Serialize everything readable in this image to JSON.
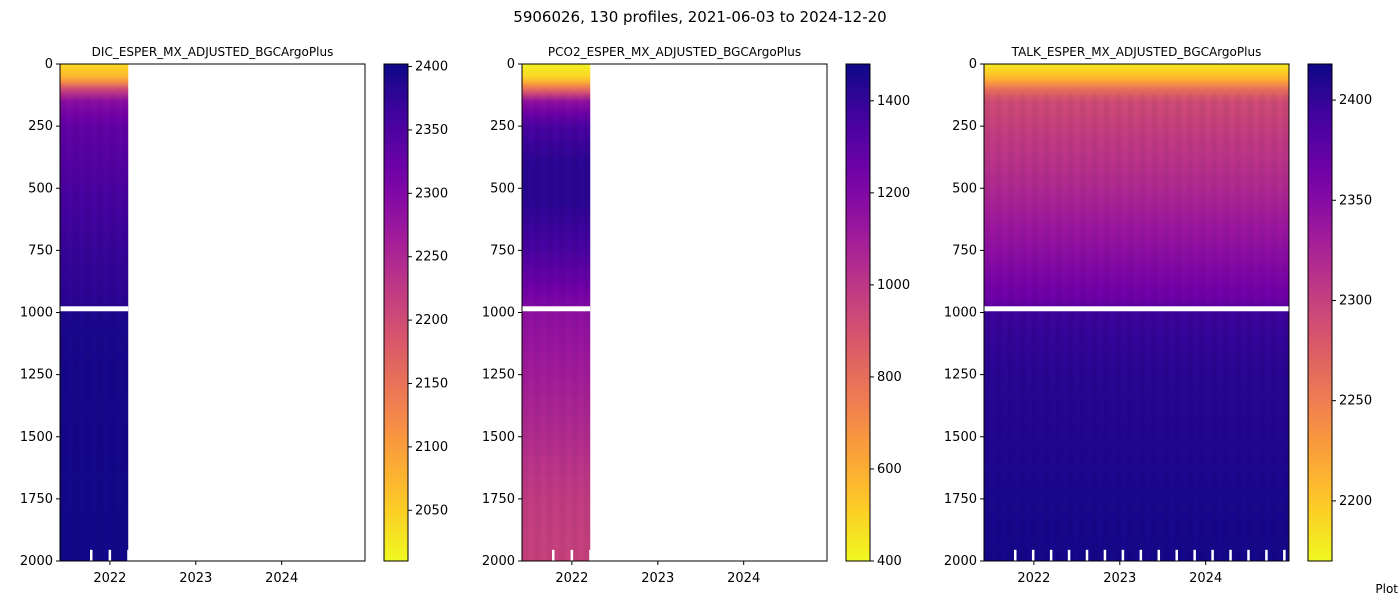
{
  "figure": {
    "title": "5906026, 130 profiles, 2021-06-03 to 2024-12-20",
    "corner_note": "Plot"
  },
  "chart_data": [
    {
      "type": "heatmap",
      "title": "DIC_ESPER_MX_ADJUSTED_BGCArgoPlus",
      "xlabel": "",
      "ylabel": "",
      "x_range": [
        "2021-06-03",
        "2024-12-20"
      ],
      "x_ticks": [
        "2022",
        "2023",
        "2024"
      ],
      "y_range": [
        2000,
        0
      ],
      "y_ticks": [
        0,
        250,
        500,
        750,
        1000,
        1250,
        1500,
        1750,
        2000
      ],
      "data_extent": [
        "2021-06-03",
        "2022-03-20"
      ],
      "missing_depth_band": [
        975,
        995
      ],
      "colormap": "plasma_r",
      "colorbar": {
        "min": 2010,
        "max": 2402,
        "ticks": [
          2050,
          2100,
          2150,
          2200,
          2250,
          2300,
          2350,
          2400
        ]
      },
      "depth_profile": [
        [
          0,
          2040
        ],
        [
          60,
          2080
        ],
        [
          100,
          2200
        ],
        [
          150,
          2290
        ],
        [
          250,
          2330
        ],
        [
          500,
          2355
        ],
        [
          750,
          2370
        ],
        [
          970,
          2380
        ],
        [
          1000,
          2390
        ],
        [
          1250,
          2395
        ],
        [
          2000,
          2400
        ]
      ]
    },
    {
      "type": "heatmap",
      "title": "PCO2_ESPER_MX_ADJUSTED_BGCArgoPlus",
      "xlabel": "",
      "ylabel": "",
      "x_range": [
        "2021-06-03",
        "2024-12-20"
      ],
      "x_ticks": [
        "2022",
        "2023",
        "2024"
      ],
      "y_range": [
        2000,
        0
      ],
      "y_ticks": [
        0,
        250,
        500,
        750,
        1000,
        1250,
        1500,
        1750,
        2000
      ],
      "data_extent": [
        "2021-06-03",
        "2022-03-20"
      ],
      "missing_depth_band": [
        975,
        995
      ],
      "colormap": "plasma_r",
      "colorbar": {
        "min": 400,
        "max": 1480,
        "ticks": [
          400,
          600,
          800,
          1000,
          1200,
          1400
        ]
      },
      "depth_profile": [
        [
          0,
          420
        ],
        [
          60,
          500
        ],
        [
          100,
          800
        ],
        [
          150,
          1150
        ],
        [
          250,
          1350
        ],
        [
          400,
          1420
        ],
        [
          550,
          1420
        ],
        [
          750,
          1350
        ],
        [
          970,
          1200
        ],
        [
          1000,
          1160
        ],
        [
          1250,
          1100
        ],
        [
          1500,
          1040
        ],
        [
          1750,
          980
        ],
        [
          2000,
          960
        ]
      ]
    },
    {
      "type": "heatmap",
      "title": "TALK_ESPER_MX_ADJUSTED_BGCArgoPlus",
      "xlabel": "",
      "ylabel": "",
      "x_range": [
        "2021-06-03",
        "2024-12-20"
      ],
      "x_ticks": [
        "2022",
        "2023",
        "2024"
      ],
      "y_range": [
        2000,
        0
      ],
      "y_ticks": [
        0,
        250,
        500,
        750,
        1000,
        1250,
        1500,
        1750,
        2000
      ],
      "data_extent": [
        "2021-06-03",
        "2024-12-20"
      ],
      "missing_depth_band": [
        975,
        995
      ],
      "colormap": "plasma_r",
      "colorbar": {
        "min": 2170,
        "max": 2418,
        "ticks": [
          2200,
          2250,
          2300,
          2350,
          2400
        ]
      },
      "depth_profile": [
        [
          0,
          2180
        ],
        [
          60,
          2210
        ],
        [
          100,
          2260
        ],
        [
          150,
          2290
        ],
        [
          250,
          2300
        ],
        [
          500,
          2320
        ],
        [
          750,
          2345
        ],
        [
          970,
          2370
        ],
        [
          1000,
          2395
        ],
        [
          1250,
          2405
        ],
        [
          2000,
          2415
        ]
      ]
    }
  ]
}
